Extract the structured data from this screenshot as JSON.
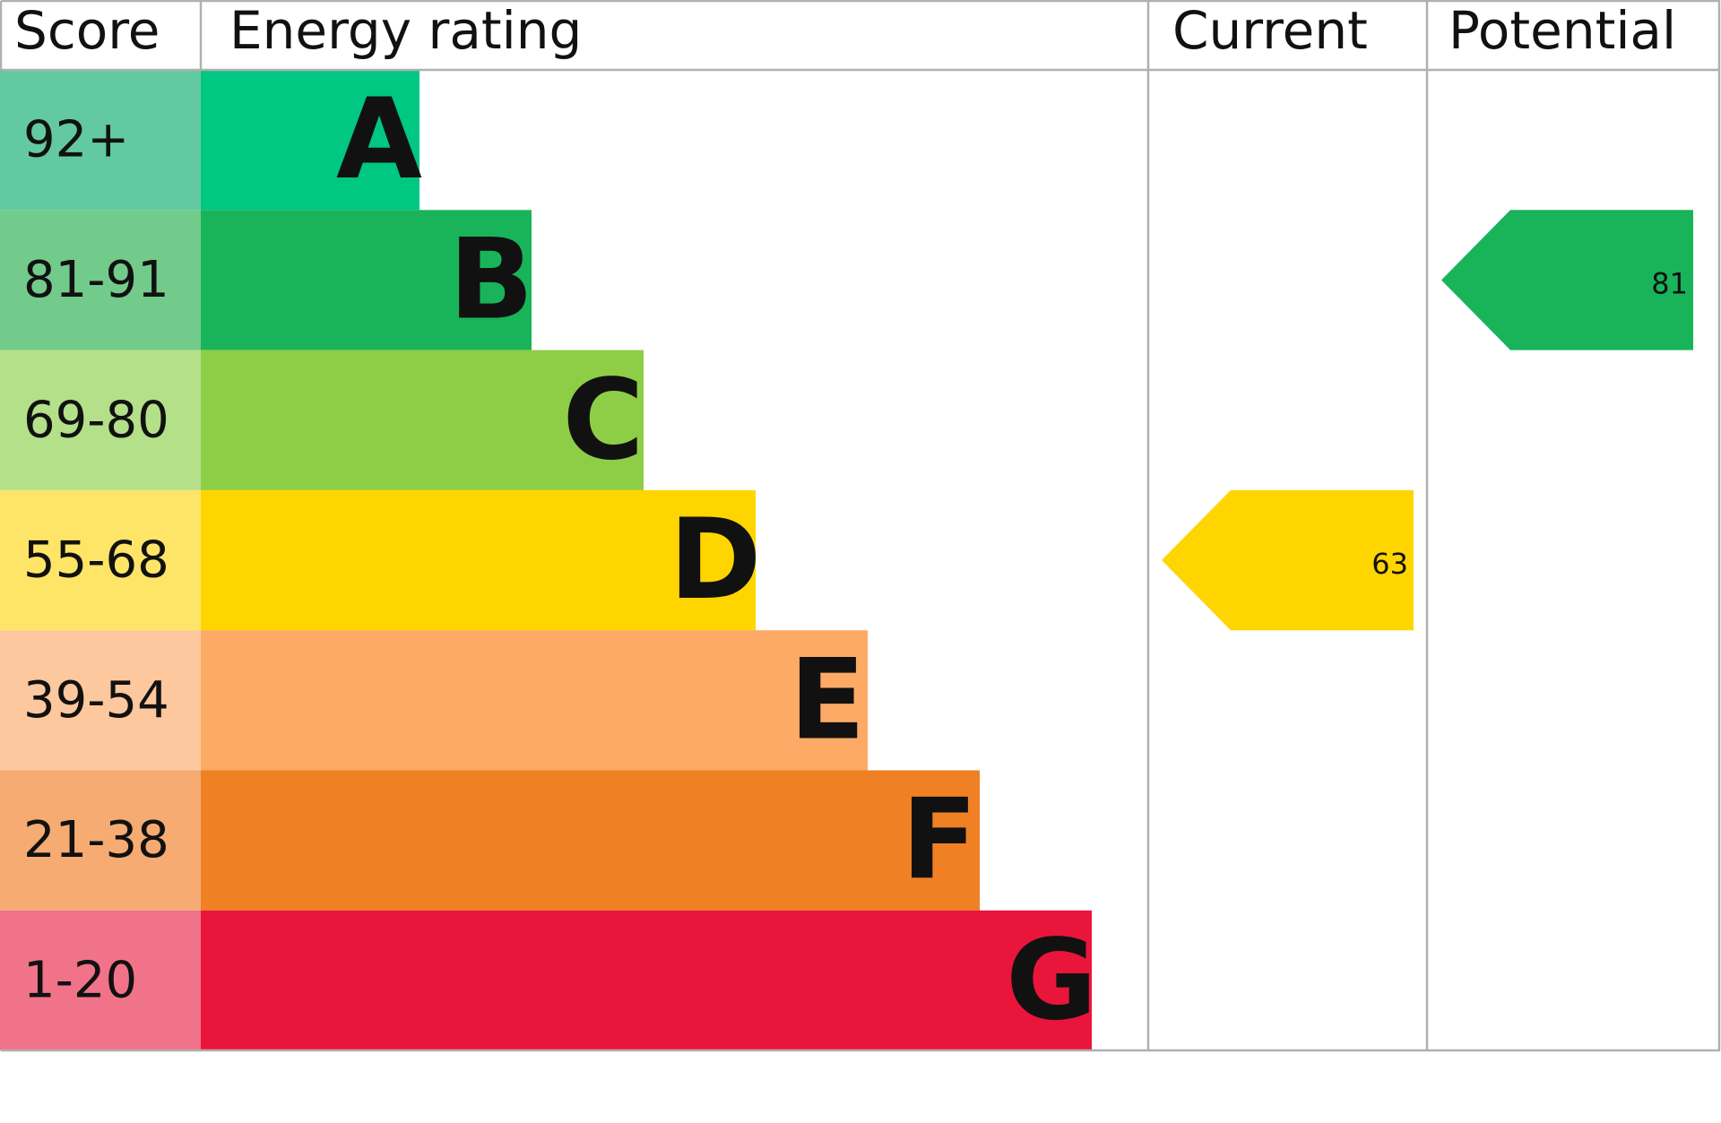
{
  "chart_data": {
    "type": "epc",
    "headers": [
      "Score",
      "Energy rating",
      "Current",
      "Potential"
    ],
    "bands": [
      {
        "score": "92+",
        "rating": "A",
        "color": "#00c781",
        "score_color": "#63c9a3"
      },
      {
        "score": "81-91",
        "rating": "B",
        "color": "#19b459",
        "score_color": "#72cb8b"
      },
      {
        "score": "69-80",
        "rating": "C",
        "color": "#8dce46",
        "score_color": "#b4e089"
      },
      {
        "score": "55-68",
        "rating": "D",
        "color": "#ffd500",
        "score_color": "#ffe567"
      },
      {
        "score": "39-54",
        "rating": "E",
        "color": "#fcaa65",
        "score_color": "#fec89e"
      },
      {
        "score": "21-38",
        "rating": "F",
        "color": "#ef8023",
        "score_color": "#f5ab72"
      },
      {
        "score": "1-20",
        "rating": "G",
        "color": "#e9153b",
        "score_color": "#f1738a"
      }
    ],
    "current": 63,
    "potential": 81
  }
}
